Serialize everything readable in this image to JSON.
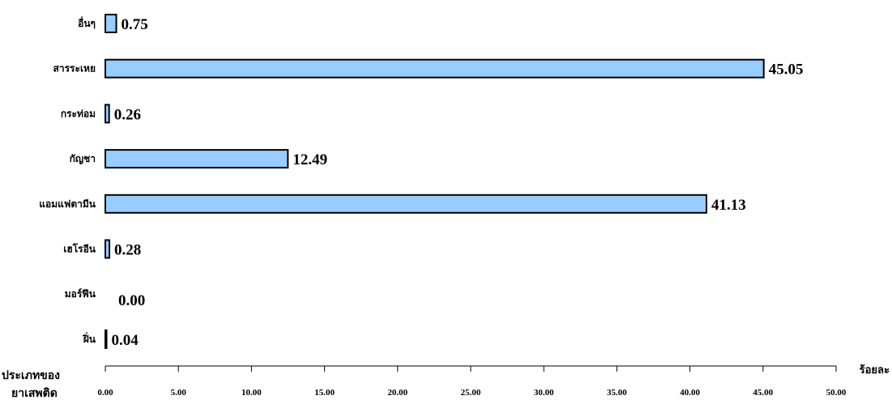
{
  "chart_data": {
    "type": "bar",
    "orientation": "horizontal",
    "title": "",
    "categories": [
      "อื่นๆ",
      "สารระเหย",
      "กระท่อม",
      "กัญชา",
      "แอมแฟตามีน",
      "เฮโรอีน",
      "มอร์ฟีน",
      "ฝิ่น"
    ],
    "values": [
      0.75,
      45.05,
      0.26,
      12.49,
      41.13,
      0.28,
      0.0,
      0.04
    ],
    "value_labels": [
      "0.75",
      "45.05",
      "0.26",
      "12.49",
      "41.13",
      "0.28",
      "0.00",
      "0.04"
    ],
    "xlabel": "ร้อยละ",
    "ylabel_line1": "ประเภทของ",
    "ylabel_line2": "ยาเสพติด",
    "xlim": [
      0,
      50
    ],
    "xticks": [
      0,
      5,
      10,
      15,
      20,
      25,
      30,
      35,
      40,
      45,
      50
    ],
    "xtick_labels": [
      "0.00",
      "5.00",
      "10.00",
      "15.00",
      "20.00",
      "25.00",
      "30.00",
      "35.00",
      "40.00",
      "45.00",
      "50.00"
    ],
    "bar_color": "#99ccff",
    "grid": false,
    "legend": "none"
  }
}
